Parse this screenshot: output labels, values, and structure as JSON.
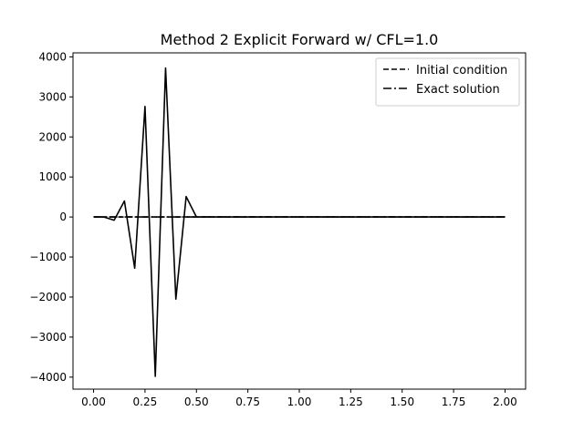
{
  "chart_data": {
    "type": "line",
    "title": "Method 2 Explicit Forward w/ CFL=1.0",
    "xlabel": "",
    "ylabel": "",
    "xlim": [
      -0.1,
      2.1
    ],
    "ylim": [
      -4300,
      4100
    ],
    "xticks": [
      0.0,
      0.25,
      0.5,
      0.75,
      1.0,
      1.25,
      1.5,
      1.75,
      2.0
    ],
    "xtick_labels": [
      "0.00",
      "0.25",
      "0.50",
      "0.75",
      "1.00",
      "1.25",
      "1.50",
      "1.75",
      "2.00"
    ],
    "yticks": [
      -4000,
      -3000,
      -2000,
      -1000,
      0,
      1000,
      2000,
      3000,
      4000
    ],
    "ytick_labels": [
      "−4000",
      "−3000",
      "−2000",
      "−1000",
      "0",
      "1000",
      "2000",
      "3000",
      "4000"
    ],
    "grid": false,
    "legend_position": "top-right",
    "series": [
      {
        "name": "",
        "style": "solid",
        "color": "#000000",
        "x": [
          0.0,
          0.05,
          0.1,
          0.15,
          0.2,
          0.25,
          0.3,
          0.35,
          0.4,
          0.45,
          0.5,
          0.55,
          2.0
        ],
        "y": [
          0,
          0,
          -80,
          400,
          -1280,
          2760,
          -3980,
          3720,
          -2050,
          510,
          0,
          0,
          0
        ]
      },
      {
        "name": "Initial condition",
        "style": "dashed",
        "color": "#000000",
        "x": [
          0.0,
          0.05,
          0.1,
          2.0
        ],
        "y": [
          0,
          0,
          0,
          0
        ]
      },
      {
        "name": "Exact solution",
        "style": "dashdot",
        "color": "#000000",
        "x": [
          0.0,
          0.1,
          2.0
        ],
        "y": [
          0,
          0,
          0
        ]
      }
    ]
  }
}
